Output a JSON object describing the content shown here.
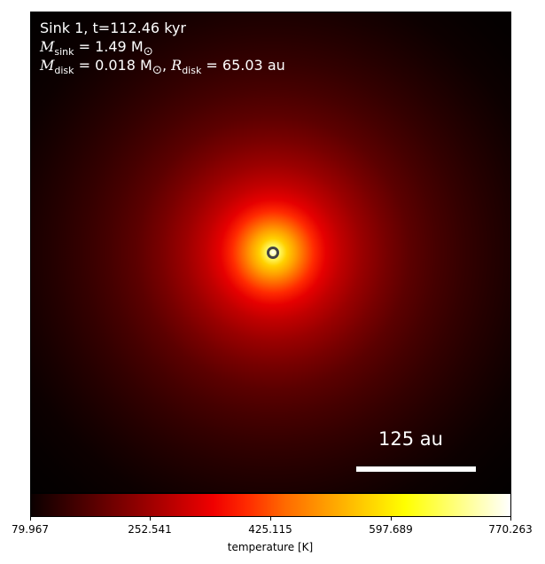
{
  "info": {
    "line1": "Sink 1, t=112.46 kyr",
    "sink_mass_symbol": "M",
    "sink_mass_sub": "sink",
    "sink_mass_value": " = 1.49 M",
    "sink_mass_unit_sub": "⊙",
    "disk_mass_symbol": "M",
    "disk_mass_sub": "disk",
    "disk_mass_value": " = 0.018 M",
    "disk_mass_unit_sub": "⊙",
    "disk_sep": ", ",
    "disk_radius_symbol": "R",
    "disk_radius_sub": "disk",
    "disk_radius_value": " = 65.03 au"
  },
  "scalebar": {
    "label": "125 au"
  },
  "colorbar": {
    "ticks": [
      "79.967",
      "252.541",
      "425.115",
      "597.689",
      "770.263"
    ],
    "label": "temperature [K]",
    "colormap": "hot"
  },
  "sink": {
    "marker_color": "#444444"
  }
}
